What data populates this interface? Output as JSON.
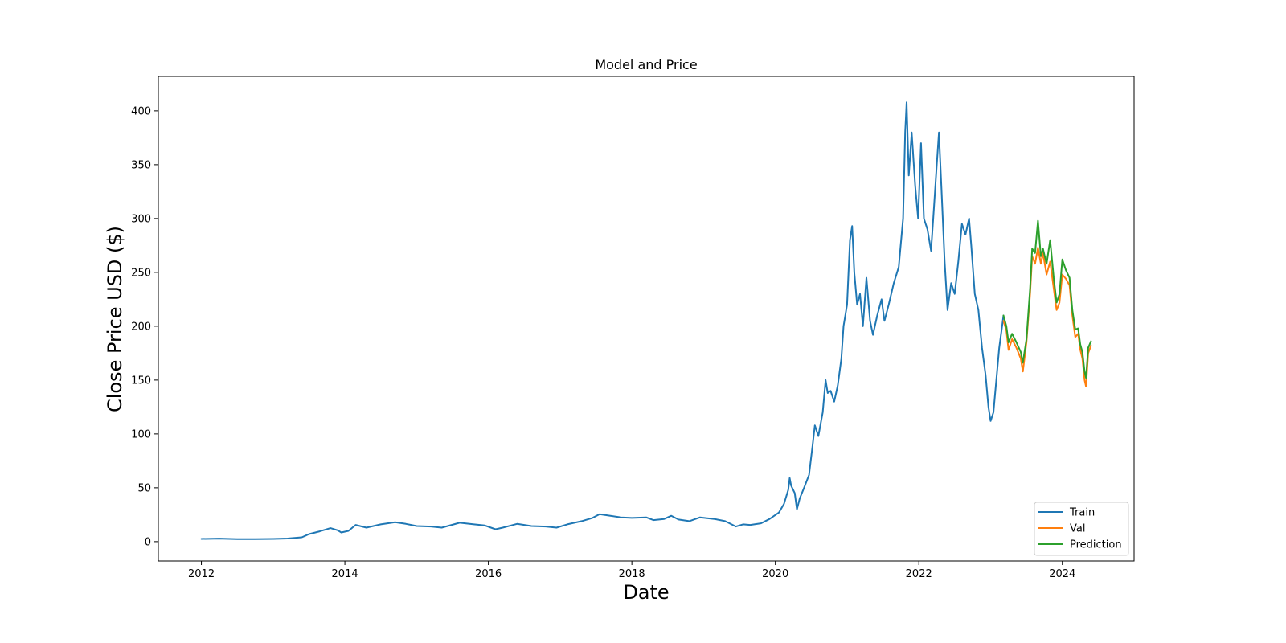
{
  "chart_data": {
    "type": "line",
    "title": "Model and Price",
    "xlabel": "Date",
    "ylabel": "Close Price USD ($)",
    "xlim": [
      2011.4,
      2025.0
    ],
    "ylim": [
      -18,
      432
    ],
    "x_ticks": [
      2012,
      2014,
      2016,
      2018,
      2020,
      2022,
      2024
    ],
    "x_tick_labels": [
      "2012",
      "2014",
      "2016",
      "2018",
      "2020",
      "2022",
      "2024"
    ],
    "y_ticks": [
      0,
      50,
      100,
      150,
      200,
      250,
      300,
      350,
      400
    ],
    "y_tick_labels": [
      "0",
      "50",
      "100",
      "150",
      "200",
      "250",
      "300",
      "350",
      "400"
    ],
    "grid": false,
    "legend": {
      "position": "lower-right",
      "entries": [
        "Train",
        "Val",
        "Prediction"
      ]
    },
    "series": [
      {
        "name": "Train",
        "color": "#1f77b4",
        "points": [
          [
            2012.0,
            2.5
          ],
          [
            2012.25,
            2.8
          ],
          [
            2012.5,
            2.4
          ],
          [
            2012.75,
            2.3
          ],
          [
            2013.0,
            2.5
          ],
          [
            2013.2,
            2.9
          ],
          [
            2013.4,
            4.0
          ],
          [
            2013.5,
            7.0
          ],
          [
            2013.65,
            9.5
          ],
          [
            2013.8,
            12.5
          ],
          [
            2013.9,
            10.5
          ],
          [
            2013.95,
            8.5
          ],
          [
            2014.05,
            10.0
          ],
          [
            2014.15,
            15.5
          ],
          [
            2014.3,
            13.0
          ],
          [
            2014.5,
            16.0
          ],
          [
            2014.7,
            18.0
          ],
          [
            2014.85,
            16.5
          ],
          [
            2015.0,
            14.5
          ],
          [
            2015.2,
            14.0
          ],
          [
            2015.35,
            13.0
          ],
          [
            2015.6,
            17.5
          ],
          [
            2015.8,
            16.0
          ],
          [
            2015.95,
            15.0
          ],
          [
            2016.1,
            11.5
          ],
          [
            2016.2,
            13.0
          ],
          [
            2016.4,
            16.5
          ],
          [
            2016.6,
            14.5
          ],
          [
            2016.8,
            14.0
          ],
          [
            2016.95,
            13.0
          ],
          [
            2017.1,
            16.0
          ],
          [
            2017.3,
            19.0
          ],
          [
            2017.45,
            22.0
          ],
          [
            2017.55,
            25.5
          ],
          [
            2017.7,
            24.0
          ],
          [
            2017.85,
            22.5
          ],
          [
            2018.0,
            22.0
          ],
          [
            2018.2,
            22.5
          ],
          [
            2018.3,
            20.0
          ],
          [
            2018.45,
            21.0
          ],
          [
            2018.55,
            24.0
          ],
          [
            2018.65,
            20.5
          ],
          [
            2018.8,
            19.0
          ],
          [
            2018.95,
            22.5
          ],
          [
            2019.15,
            21.0
          ],
          [
            2019.3,
            19.0
          ],
          [
            2019.45,
            14.0
          ],
          [
            2019.55,
            16.0
          ],
          [
            2019.65,
            15.5
          ],
          [
            2019.8,
            17.0
          ],
          [
            2019.92,
            21.0
          ],
          [
            2020.05,
            27.0
          ],
          [
            2020.12,
            35.0
          ],
          [
            2020.18,
            48.0
          ],
          [
            2020.2,
            59.0
          ],
          [
            2020.22,
            52.0
          ],
          [
            2020.27,
            45.0
          ],
          [
            2020.3,
            30.0
          ],
          [
            2020.34,
            40.0
          ],
          [
            2020.4,
            50.0
          ],
          [
            2020.47,
            62.0
          ],
          [
            2020.52,
            90.0
          ],
          [
            2020.55,
            108.0
          ],
          [
            2020.6,
            98.0
          ],
          [
            2020.66,
            120.0
          ],
          [
            2020.7,
            150.0
          ],
          [
            2020.73,
            138.0
          ],
          [
            2020.77,
            140.0
          ],
          [
            2020.82,
            130.0
          ],
          [
            2020.87,
            145.0
          ],
          [
            2020.92,
            170.0
          ],
          [
            2020.95,
            200.0
          ],
          [
            2021.0,
            220.0
          ],
          [
            2021.04,
            280.0
          ],
          [
            2021.07,
            293.0
          ],
          [
            2021.1,
            250.0
          ],
          [
            2021.14,
            220.0
          ],
          [
            2021.18,
            230.0
          ],
          [
            2021.22,
            200.0
          ],
          [
            2021.27,
            245.0
          ],
          [
            2021.32,
            205.0
          ],
          [
            2021.36,
            192.0
          ],
          [
            2021.42,
            210.0
          ],
          [
            2021.48,
            225.0
          ],
          [
            2021.52,
            205.0
          ],
          [
            2021.58,
            220.0
          ],
          [
            2021.65,
            240.0
          ],
          [
            2021.72,
            255.0
          ],
          [
            2021.78,
            300.0
          ],
          [
            2021.81,
            380.0
          ],
          [
            2021.83,
            408.0
          ],
          [
            2021.86,
            340.0
          ],
          [
            2021.9,
            380.0
          ],
          [
            2021.95,
            330.0
          ],
          [
            2021.99,
            300.0
          ],
          [
            2022.03,
            370.0
          ],
          [
            2022.07,
            300.0
          ],
          [
            2022.12,
            290.0
          ],
          [
            2022.17,
            270.0
          ],
          [
            2022.2,
            300.0
          ],
          [
            2022.25,
            350.0
          ],
          [
            2022.28,
            380.0
          ],
          [
            2022.32,
            320.0
          ],
          [
            2022.36,
            260.0
          ],
          [
            2022.4,
            215.0
          ],
          [
            2022.45,
            240.0
          ],
          [
            2022.5,
            230.0
          ],
          [
            2022.55,
            260.0
          ],
          [
            2022.6,
            295.0
          ],
          [
            2022.65,
            285.0
          ],
          [
            2022.7,
            300.0
          ],
          [
            2022.73,
            275.0
          ],
          [
            2022.78,
            230.0
          ],
          [
            2022.83,
            215.0
          ],
          [
            2022.88,
            180.0
          ],
          [
            2022.93,
            155.0
          ],
          [
            2022.97,
            125.0
          ],
          [
            2023.0,
            112.0
          ],
          [
            2023.04,
            120.0
          ],
          [
            2023.08,
            150.0
          ],
          [
            2023.12,
            180.0
          ],
          [
            2023.16,
            200.0
          ],
          [
            2023.18,
            210.0
          ]
        ]
      },
      {
        "name": "Val",
        "color": "#ff7f0e",
        "points": [
          [
            2023.18,
            205.0
          ],
          [
            2023.22,
            196.0
          ],
          [
            2023.25,
            178.0
          ],
          [
            2023.3,
            188.0
          ],
          [
            2023.36,
            180.0
          ],
          [
            2023.42,
            170.0
          ],
          [
            2023.45,
            158.0
          ],
          [
            2023.5,
            185.0
          ],
          [
            2023.55,
            230.0
          ],
          [
            2023.58,
            265.0
          ],
          [
            2023.62,
            258.0
          ],
          [
            2023.66,
            273.0
          ],
          [
            2023.7,
            258.0
          ],
          [
            2023.73,
            268.0
          ],
          [
            2023.78,
            248.0
          ],
          [
            2023.83,
            260.0
          ],
          [
            2023.88,
            235.0
          ],
          [
            2023.92,
            215.0
          ],
          [
            2023.96,
            222.0
          ],
          [
            2024.0,
            248.0
          ],
          [
            2024.05,
            244.0
          ],
          [
            2024.1,
            238.0
          ],
          [
            2024.14,
            210.0
          ],
          [
            2024.18,
            190.0
          ],
          [
            2024.22,
            193.0
          ],
          [
            2024.25,
            178.0
          ],
          [
            2024.28,
            170.0
          ],
          [
            2024.31,
            150.0
          ],
          [
            2024.33,
            144.0
          ],
          [
            2024.36,
            175.0
          ],
          [
            2024.4,
            182.0
          ]
        ]
      },
      {
        "name": "Prediction",
        "color": "#2ca02c",
        "points": [
          [
            2023.18,
            210.0
          ],
          [
            2023.22,
            200.0
          ],
          [
            2023.25,
            185.0
          ],
          [
            2023.3,
            193.0
          ],
          [
            2023.36,
            185.0
          ],
          [
            2023.42,
            176.0
          ],
          [
            2023.45,
            166.0
          ],
          [
            2023.5,
            188.0
          ],
          [
            2023.55,
            235.0
          ],
          [
            2023.58,
            272.0
          ],
          [
            2023.62,
            268.0
          ],
          [
            2023.66,
            298.0
          ],
          [
            2023.7,
            265.0
          ],
          [
            2023.73,
            272.0
          ],
          [
            2023.78,
            258.0
          ],
          [
            2023.83,
            280.0
          ],
          [
            2023.88,
            245.0
          ],
          [
            2023.92,
            222.0
          ],
          [
            2023.96,
            230.0
          ],
          [
            2024.0,
            262.0
          ],
          [
            2024.05,
            252.0
          ],
          [
            2024.1,
            245.0
          ],
          [
            2024.14,
            215.0
          ],
          [
            2024.18,
            197.0
          ],
          [
            2024.22,
            198.0
          ],
          [
            2024.25,
            183.0
          ],
          [
            2024.28,
            176.0
          ],
          [
            2024.31,
            158.0
          ],
          [
            2024.33,
            152.0
          ],
          [
            2024.36,
            180.0
          ],
          [
            2024.4,
            186.0
          ]
        ]
      }
    ]
  }
}
